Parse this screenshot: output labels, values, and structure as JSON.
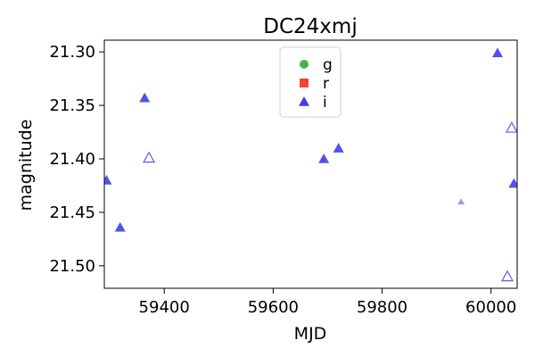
{
  "chart_data": {
    "type": "scatter",
    "title": "DC24xmj",
    "xlabel": "MJD",
    "ylabel": "magnitude",
    "xlim": [
      59290,
      60048
    ],
    "ylim": [
      21.521,
      21.289
    ],
    "y_inverted": true,
    "grid": false,
    "legend_position": "top-center",
    "x_ticks": [
      59400,
      59600,
      59800,
      60000
    ],
    "x_tick_labels": [
      "59400",
      "59600",
      "59800",
      "60000"
    ],
    "y_ticks": [
      21.3,
      21.35,
      21.4,
      21.45,
      21.5
    ],
    "y_tick_labels": [
      "21.30",
      "21.35",
      "21.40",
      "21.45",
      "21.50"
    ],
    "series": [
      {
        "name": "g",
        "marker": "circle",
        "color": "#4caf50",
        "points": []
      },
      {
        "name": "r",
        "marker": "square",
        "color": "#f44336",
        "points": []
      },
      {
        "name": "i",
        "marker": "triangle",
        "color": "#3f3fe6",
        "points": [
          {
            "x": 59294,
            "y": 21.42,
            "style": "filled"
          },
          {
            "x": 59319,
            "y": 21.464,
            "style": "filled"
          },
          {
            "x": 59364,
            "y": 21.343,
            "style": "filled"
          },
          {
            "x": 59372,
            "y": 21.399,
            "style": "open"
          },
          {
            "x": 59693,
            "y": 21.4,
            "style": "filled"
          },
          {
            "x": 59720,
            "y": 21.39,
            "style": "filled"
          },
          {
            "x": 59945,
            "y": 21.44,
            "style": "faint-small"
          },
          {
            "x": 60012,
            "y": 21.301,
            "style": "filled"
          },
          {
            "x": 60030,
            "y": 21.51,
            "style": "open"
          },
          {
            "x": 60038,
            "y": 21.371,
            "style": "open"
          },
          {
            "x": 60042,
            "y": 21.423,
            "style": "filled"
          }
        ]
      }
    ]
  }
}
